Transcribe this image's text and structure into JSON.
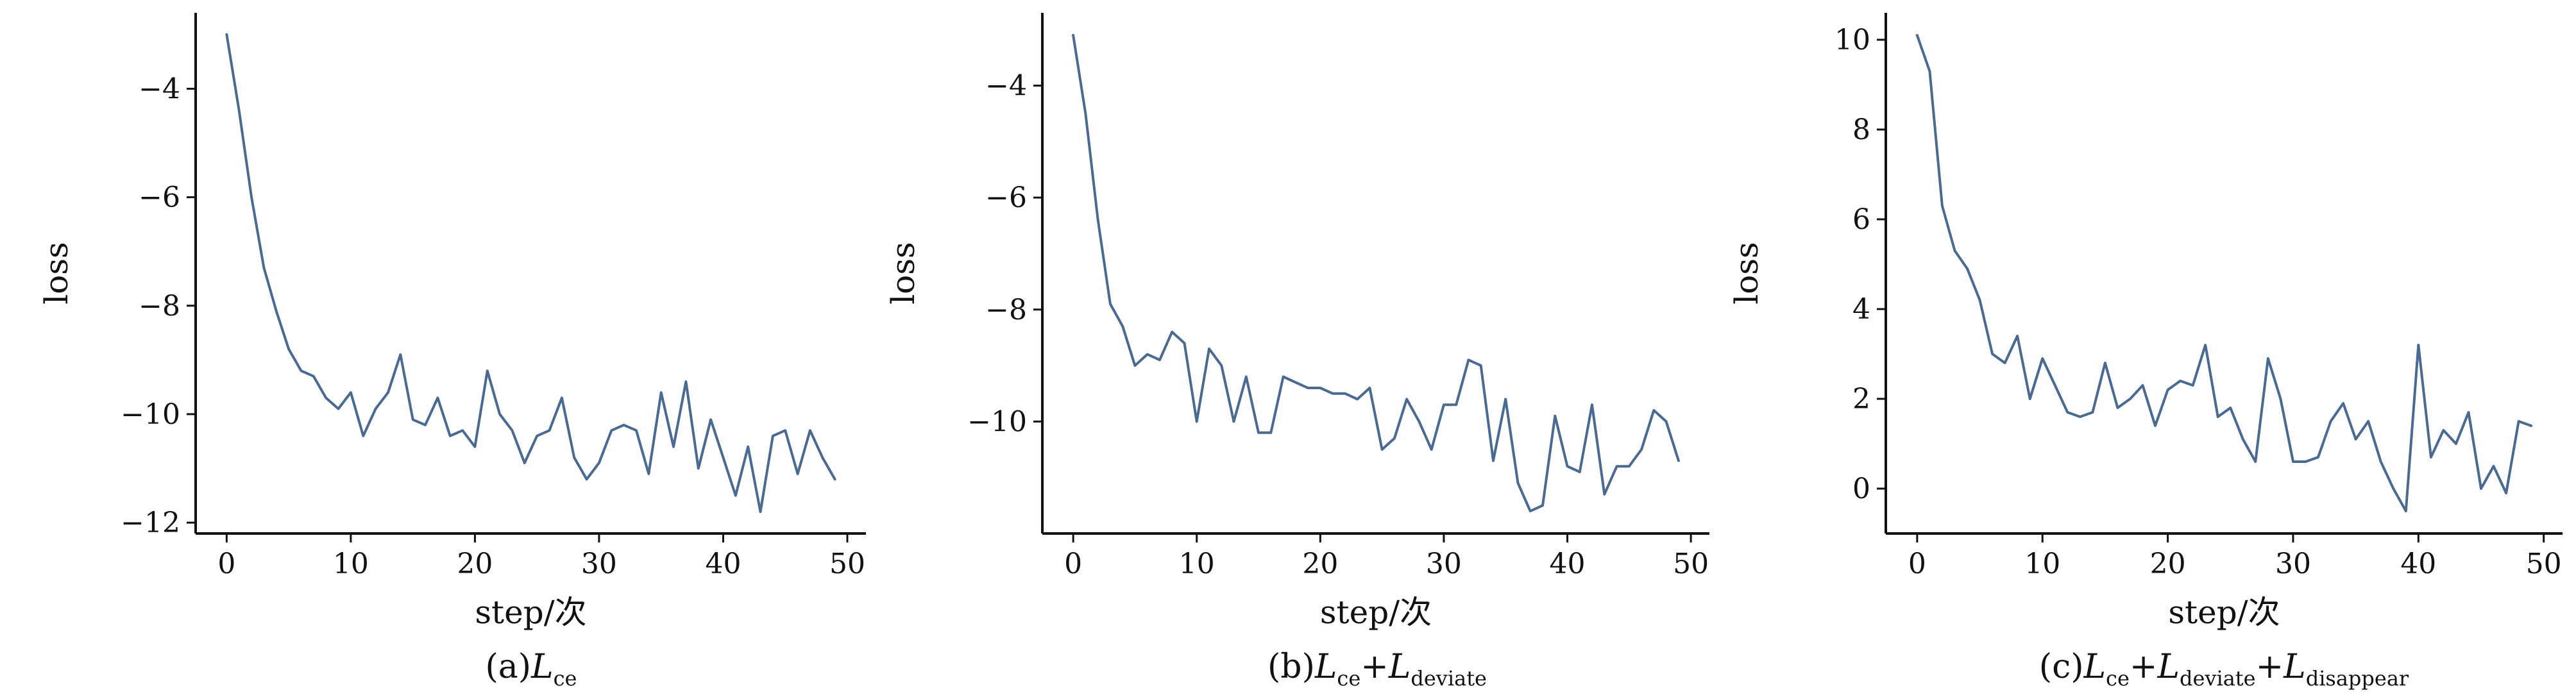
{
  "chart_data": [
    {
      "type": "line",
      "caption": {
        "prefix": "(a)",
        "terms": [
          {
            "main": "L",
            "sub": "ce"
          }
        ]
      },
      "xlabel": "step/次",
      "ylabel": "loss",
      "xlim": [
        -2.5,
        51.5
      ],
      "ylim": [
        -12.2,
        -2.6
      ],
      "xticks": [
        0,
        10,
        20,
        30,
        40,
        50
      ],
      "yticks": [
        -12,
        -10,
        -8,
        -6,
        -4
      ],
      "grid": false,
      "color": "#4a6a91",
      "series": [
        {
          "x": [
            0,
            1,
            2,
            3,
            4,
            5,
            6,
            7,
            8,
            9,
            10,
            11,
            12,
            13,
            14,
            15,
            16,
            17,
            18,
            19,
            20,
            21,
            22,
            23,
            24,
            25,
            26,
            27,
            28,
            29,
            30,
            31,
            32,
            33,
            34,
            35,
            36,
            37,
            38,
            39,
            40,
            41,
            42,
            43,
            44,
            45,
            46,
            47,
            48,
            49
          ],
          "values": [
            -3.0,
            -4.4,
            -6.0,
            -7.3,
            -8.1,
            -8.8,
            -9.2,
            -9.3,
            -9.7,
            -9.9,
            -9.6,
            -10.4,
            -9.9,
            -9.6,
            -8.9,
            -10.1,
            -10.2,
            -9.7,
            -10.4,
            -10.3,
            -10.6,
            -9.2,
            -10.0,
            -10.3,
            -10.9,
            -10.4,
            -10.3,
            -9.7,
            -10.8,
            -11.2,
            -10.9,
            -10.3,
            -10.2,
            -10.3,
            -11.1,
            -9.6,
            -10.6,
            -9.4,
            -11.0,
            -10.1,
            -10.8,
            -11.5,
            -10.6,
            -11.8,
            -10.4,
            -10.3,
            -11.1,
            -10.3,
            -10.8,
            -11.2
          ]
        }
      ]
    },
    {
      "type": "line",
      "caption": {
        "prefix": "(b)",
        "terms": [
          {
            "main": "L",
            "sub": "ce"
          },
          {
            "main": "L",
            "sub": "deviate"
          }
        ]
      },
      "xlabel": "step/次",
      "ylabel": "loss",
      "xlim": [
        -2.5,
        51.5
      ],
      "ylim": [
        -12.0,
        -2.7
      ],
      "xticks": [
        0,
        10,
        20,
        30,
        40,
        50
      ],
      "yticks": [
        -10,
        -8,
        -6,
        -4
      ],
      "grid": false,
      "color": "#4a6a91",
      "series": [
        {
          "x": [
            0,
            1,
            2,
            3,
            4,
            5,
            6,
            7,
            8,
            9,
            10,
            11,
            12,
            13,
            14,
            15,
            16,
            17,
            18,
            19,
            20,
            21,
            22,
            23,
            24,
            25,
            26,
            27,
            28,
            29,
            30,
            31,
            32,
            33,
            34,
            35,
            36,
            37,
            38,
            39,
            40,
            41,
            42,
            43,
            44,
            45,
            46,
            47,
            48,
            49
          ],
          "values": [
            -3.1,
            -4.5,
            -6.4,
            -7.9,
            -8.3,
            -9.0,
            -8.8,
            -8.9,
            -8.4,
            -8.6,
            -10.0,
            -8.7,
            -9.0,
            -10.0,
            -9.2,
            -10.2,
            -10.2,
            -9.2,
            -9.3,
            -9.4,
            -9.4,
            -9.5,
            -9.5,
            -9.6,
            -9.4,
            -10.5,
            -10.3,
            -9.6,
            -10.0,
            -10.5,
            -9.7,
            -9.7,
            -8.9,
            -9.0,
            -10.7,
            -9.6,
            -11.1,
            -11.6,
            -11.5,
            -9.9,
            -10.8,
            -10.9,
            -9.7,
            -11.3,
            -10.8,
            -10.8,
            -10.5,
            -9.8,
            -10.0,
            -10.7
          ]
        }
      ]
    },
    {
      "type": "line",
      "caption": {
        "prefix": "(c)",
        "terms": [
          {
            "main": "L",
            "sub": "ce"
          },
          {
            "main": "L",
            "sub": "deviate"
          },
          {
            "main": "L",
            "sub": "disappear"
          }
        ]
      },
      "xlabel": "step/次",
      "ylabel": "loss",
      "xlim": [
        -2.5,
        51.5
      ],
      "ylim": [
        -1.0,
        10.6
      ],
      "xticks": [
        0,
        10,
        20,
        30,
        40,
        50
      ],
      "yticks": [
        0,
        2,
        4,
        6,
        8,
        10
      ],
      "grid": false,
      "color": "#4a6a91",
      "series": [
        {
          "x": [
            0,
            1,
            2,
            3,
            4,
            5,
            6,
            7,
            8,
            9,
            10,
            11,
            12,
            13,
            14,
            15,
            16,
            17,
            18,
            19,
            20,
            21,
            22,
            23,
            24,
            25,
            26,
            27,
            28,
            29,
            30,
            31,
            32,
            33,
            34,
            35,
            36,
            37,
            38,
            39,
            40,
            41,
            42,
            43,
            44,
            45,
            46,
            47,
            48,
            49
          ],
          "values": [
            10.1,
            9.3,
            6.3,
            5.3,
            4.9,
            4.2,
            3.0,
            2.8,
            3.4,
            2.0,
            2.9,
            2.3,
            1.7,
            1.6,
            1.7,
            2.8,
            1.8,
            2.0,
            2.3,
            1.4,
            2.2,
            2.4,
            2.3,
            3.2,
            1.6,
            1.8,
            1.1,
            0.6,
            2.9,
            2.0,
            0.6,
            0.6,
            0.7,
            1.5,
            1.9,
            1.1,
            1.5,
            0.6,
            0.0,
            -0.5,
            3.2,
            0.7,
            1.3,
            1.0,
            1.7,
            0.0,
            0.5,
            -0.1,
            1.5,
            1.4
          ]
        }
      ]
    }
  ]
}
